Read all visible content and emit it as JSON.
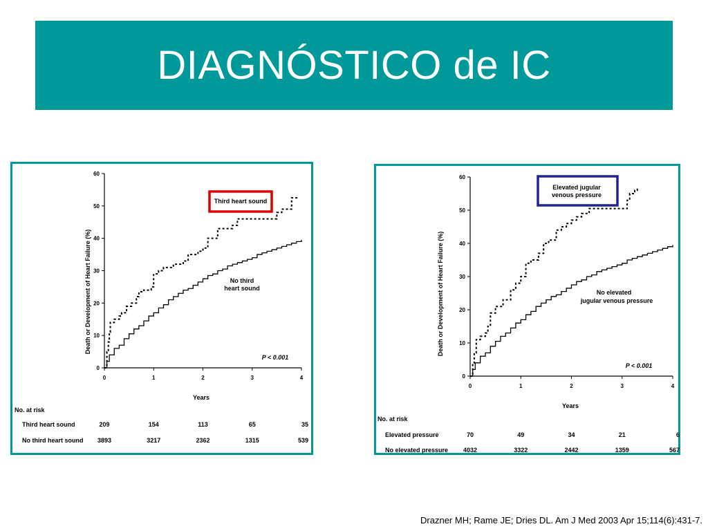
{
  "title": "DIAGNÓSTICO de IC",
  "citation": "Drazner MH; Rame JE; Dries DL. Am J Med 2003 Apr 15;114(6):431-7.",
  "colors": {
    "accent": "#009999",
    "highlight_left": "#e00000",
    "highlight_right": "#22229a"
  },
  "chart_data": [
    {
      "type": "line",
      "ylabel": "Death or Development of Heart Failure (%)",
      "xlabel": "Years",
      "xlim": [
        0,
        4
      ],
      "ylim": [
        0,
        60
      ],
      "x_ticks": [
        "0",
        "1",
        "2",
        "3",
        "4"
      ],
      "y_ticks": [
        "0",
        "10",
        "20",
        "30",
        "40",
        "50",
        "60"
      ],
      "p_value": "P < 0.001",
      "series": [
        {
          "name": "Third heart sound",
          "style": "dashed",
          "x": [
            0,
            0.05,
            0.08,
            0.1,
            0.12,
            0.2,
            0.3,
            0.35,
            0.45,
            0.55,
            0.65,
            0.7,
            0.8,
            0.95,
            1.0,
            1.1,
            1.2,
            1.4,
            1.6,
            1.7,
            1.9,
            2.0,
            2.1,
            2.3,
            2.6,
            2.7,
            3.0,
            3.1,
            3.35,
            3.5,
            3.6,
            3.75,
            3.8,
            3.95
          ],
          "y": [
            0,
            5,
            8,
            11,
            14,
            15,
            16,
            17,
            19,
            20,
            22,
            23.5,
            24,
            25,
            29,
            30,
            31,
            32,
            33,
            35,
            36,
            37,
            40,
            43,
            44,
            46,
            46,
            46,
            46,
            48,
            49,
            49,
            52.5,
            52.5
          ]
        },
        {
          "name": "No third heart sound",
          "style": "solid",
          "x": [
            0,
            0.05,
            0.1,
            0.2,
            0.3,
            0.4,
            0.5,
            0.6,
            0.7,
            0.8,
            0.9,
            1.0,
            1.1,
            1.2,
            1.3,
            1.4,
            1.5,
            1.6,
            1.7,
            1.8,
            1.9,
            2.0,
            2.1,
            2.2,
            2.3,
            2.4,
            2.5,
            2.6,
            2.7,
            2.8,
            2.9,
            3.0,
            3.1,
            3.2,
            3.3,
            3.4,
            3.5,
            3.6,
            3.7,
            3.8,
            3.9,
            4.0
          ],
          "y": [
            0,
            2,
            4,
            6,
            7,
            9,
            10.5,
            12,
            13,
            14.5,
            16,
            17,
            18.5,
            19.5,
            21,
            22,
            23,
            24,
            24.5,
            25.5,
            26.5,
            27.5,
            28.5,
            29,
            30,
            30.5,
            31.5,
            32,
            32.5,
            33,
            33.5,
            34,
            35,
            35.5,
            36,
            36.5,
            37,
            37.5,
            38,
            38.5,
            39,
            39.5
          ]
        }
      ],
      "labels": {
        "highlight": "Third heart sound",
        "curve": [
          "No third",
          "heart sound"
        ]
      },
      "at_risk": {
        "header": "No. at risk",
        "rows": [
          {
            "label": "Third heart sound",
            "values": [
              "209",
              "154",
              "113",
              "65",
              "35"
            ]
          },
          {
            "label": "No third heart sound",
            "values": [
              "3893",
              "3217",
              "2362",
              "1315",
              "539"
            ]
          }
        ]
      }
    },
    {
      "type": "line",
      "ylabel": "Death or Development of Heart Failure (%)",
      "xlabel": "Years",
      "xlim": [
        0,
        4
      ],
      "ylim": [
        0,
        60
      ],
      "x_ticks": [
        "0",
        "1",
        "2",
        "3",
        "4"
      ],
      "y_ticks": [
        "0",
        "10",
        "20",
        "30",
        "40",
        "50",
        "60"
      ],
      "p_value": "P < 0.001",
      "series": [
        {
          "name": "Elevated jugular venous pressure",
          "style": "dashed",
          "x": [
            0,
            0.05,
            0.08,
            0.12,
            0.2,
            0.3,
            0.35,
            0.4,
            0.5,
            0.65,
            0.8,
            0.9,
            1.0,
            1.1,
            1.2,
            1.35,
            1.45,
            1.55,
            1.7,
            1.8,
            1.9,
            2.0,
            2.1,
            2.2,
            2.35,
            2.5,
            2.7,
            2.9,
            3.0,
            3.1,
            3.15,
            3.25,
            3.3
          ],
          "y": [
            0,
            4,
            7,
            11,
            12,
            13,
            15,
            19,
            21,
            23,
            26,
            28,
            30,
            34,
            35,
            37,
            40,
            41,
            44,
            45,
            46,
            47,
            48,
            49,
            50.5,
            50.5,
            50.5,
            50.5,
            50.5,
            53,
            55,
            56,
            57
          ]
        },
        {
          "name": "No elevated jugular venous pressure",
          "style": "solid",
          "x": [
            0,
            0.05,
            0.1,
            0.2,
            0.3,
            0.4,
            0.5,
            0.6,
            0.7,
            0.8,
            0.9,
            1.0,
            1.1,
            1.2,
            1.3,
            1.4,
            1.5,
            1.6,
            1.7,
            1.8,
            1.9,
            2.0,
            2.1,
            2.2,
            2.3,
            2.4,
            2.5,
            2.6,
            2.7,
            2.8,
            2.9,
            3.0,
            3.1,
            3.2,
            3.3,
            3.4,
            3.5,
            3.6,
            3.7,
            3.8,
            3.9,
            4.0
          ],
          "y": [
            0,
            2,
            4,
            6,
            7,
            9,
            10.5,
            12,
            13,
            14.5,
            16,
            17,
            18.5,
            19.5,
            21,
            22,
            23,
            24,
            24.5,
            25.5,
            26.5,
            27.5,
            28.5,
            29,
            30,
            30.5,
            31.5,
            32,
            32.5,
            33,
            33.5,
            34,
            35,
            35.5,
            36,
            36.5,
            37,
            37.5,
            38,
            38.5,
            39,
            39.5
          ]
        }
      ],
      "labels": {
        "highlight": [
          "Elevated jugular",
          "venous pressure"
        ],
        "curve": [
          "No elevated",
          "jugular venous pressure"
        ]
      },
      "at_risk": {
        "header": "No. at risk",
        "rows": [
          {
            "label": "Elevated pressure",
            "values": [
              "70",
              "49",
              "34",
              "21",
              "6"
            ]
          },
          {
            "label": "No elevated pressure",
            "values": [
              "4032",
              "3322",
              "2442",
              "1359",
              "567"
            ]
          }
        ]
      }
    }
  ]
}
